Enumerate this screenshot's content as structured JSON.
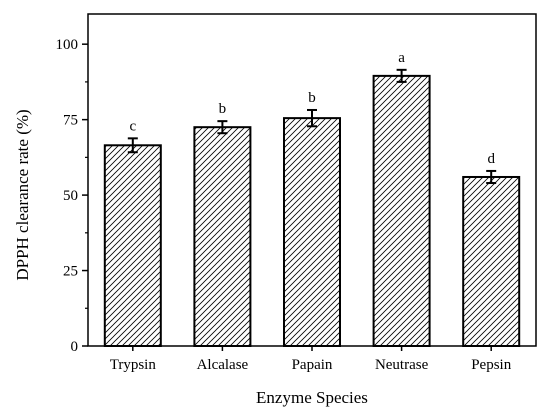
{
  "chart_data": {
    "type": "bar",
    "categories": [
      "Trypsin",
      "Alcalase",
      "Papain",
      "Neutrase",
      "Pepsin"
    ],
    "values": [
      66.5,
      72.5,
      75.5,
      89.5,
      56.0
    ],
    "errors": [
      2.3,
      2.0,
      2.7,
      2.0,
      2.0
    ],
    "significance_labels": [
      "c",
      "b",
      "b",
      "a",
      "d"
    ],
    "xlabel": "Enzyme Species",
    "ylabel": "DPPH clearance rate (%)",
    "ylim": [
      0,
      110
    ],
    "yticks": [
      0,
      25,
      50,
      75,
      100
    ],
    "grid": false,
    "bar_fill": "hatched",
    "colors": {
      "bar_stroke": "#000000",
      "hatch": "#000000",
      "background": "#ffffff"
    }
  }
}
